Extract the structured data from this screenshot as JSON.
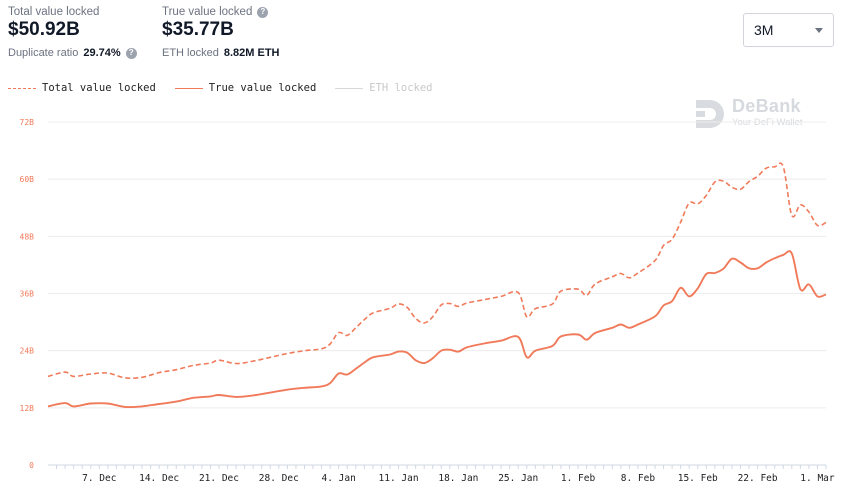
{
  "stats": {
    "total_label": "Total value locked",
    "total_value": "$50.92B",
    "duplicate_label": "Duplicate ratio",
    "duplicate_value": "29.74%",
    "true_label": "True value locked",
    "true_value": "$35.77B",
    "eth_label": "ETH locked",
    "eth_value": "8.82M ETH"
  },
  "range_select": {
    "value": "3M"
  },
  "watermark": {
    "name": "DeBank",
    "tagline": "Your DeFi Wallet"
  },
  "colors": {
    "accent": "#f07a5a",
    "grid": "#ececec",
    "muted": "#d0d0d0"
  },
  "chart_data": {
    "type": "line",
    "title": "",
    "xlabel": "",
    "ylabel": "",
    "ylim": [
      0,
      72
    ],
    "y_unit": "B",
    "y_ticks": [
      "0",
      "12B",
      "24B",
      "36B",
      "48B",
      "60B",
      "72B"
    ],
    "x_range": [
      "2020-12-01",
      "2021-03-02"
    ],
    "x_ticks": [
      {
        "date": "2020-12-07",
        "label": "7. Dec"
      },
      {
        "date": "2020-12-14",
        "label": "14. Dec"
      },
      {
        "date": "2020-12-21",
        "label": "21. Dec"
      },
      {
        "date": "2020-12-28",
        "label": "28. Dec"
      },
      {
        "date": "2021-01-04",
        "label": "4. Jan"
      },
      {
        "date": "2021-01-11",
        "label": "11. Jan"
      },
      {
        "date": "2021-01-18",
        "label": "18. Jan"
      },
      {
        "date": "2021-01-25",
        "label": "25. Jan"
      },
      {
        "date": "2021-02-01",
        "label": "1. Feb"
      },
      {
        "date": "2021-02-08",
        "label": "8. Feb"
      },
      {
        "date": "2021-02-15",
        "label": "15. Feb"
      },
      {
        "date": "2021-02-22",
        "label": "22. Feb"
      },
      {
        "date": "2021-03-01",
        "label": "1. Mar"
      }
    ],
    "grid": true,
    "legend_position": "top-left",
    "series": [
      {
        "name": "Total value locked",
        "style": "dashed",
        "color": "#f07a5a",
        "points": [
          [
            "2020-12-01",
            18.6
          ],
          [
            "2020-12-03",
            19.5
          ],
          [
            "2020-12-04",
            18.6
          ],
          [
            "2020-12-06",
            19.1
          ],
          [
            "2020-12-08",
            19.3
          ],
          [
            "2020-12-10",
            18.3
          ],
          [
            "2020-12-12",
            18.4
          ],
          [
            "2020-12-14",
            19.4
          ],
          [
            "2020-12-16",
            20.0
          ],
          [
            "2020-12-18",
            20.9
          ],
          [
            "2020-12-20",
            21.4
          ],
          [
            "2020-12-21",
            22.0
          ],
          [
            "2020-12-23",
            21.3
          ],
          [
            "2020-12-25",
            21.8
          ],
          [
            "2020-12-27",
            22.6
          ],
          [
            "2020-12-29",
            23.4
          ],
          [
            "2020-12-31",
            24.0
          ],
          [
            "2021-01-02",
            24.4
          ],
          [
            "2021-01-03",
            25.4
          ],
          [
            "2021-01-04",
            27.8
          ],
          [
            "2021-01-05",
            27.2
          ],
          [
            "2021-01-06",
            28.8
          ],
          [
            "2021-01-07",
            30.5
          ],
          [
            "2021-01-08",
            31.9
          ],
          [
            "2021-01-10",
            32.9
          ],
          [
            "2021-01-11",
            33.8
          ],
          [
            "2021-01-12",
            33.1
          ],
          [
            "2021-01-13",
            30.8
          ],
          [
            "2021-01-14",
            29.8
          ],
          [
            "2021-01-15",
            31.1
          ],
          [
            "2021-01-16",
            33.6
          ],
          [
            "2021-01-17",
            33.9
          ],
          [
            "2021-01-18",
            33.3
          ],
          [
            "2021-01-19",
            34.0
          ],
          [
            "2021-01-21",
            34.7
          ],
          [
            "2021-01-23",
            35.4
          ],
          [
            "2021-01-25",
            36.2
          ],
          [
            "2021-01-26",
            31.1
          ],
          [
            "2021-01-27",
            32.8
          ],
          [
            "2021-01-29",
            33.8
          ],
          [
            "2021-01-30",
            36.5
          ],
          [
            "2021-02-01",
            36.9
          ],
          [
            "2021-02-02",
            35.6
          ],
          [
            "2021-02-03",
            38.0
          ],
          [
            "2021-02-05",
            39.5
          ],
          [
            "2021-02-06",
            40.2
          ],
          [
            "2021-02-07",
            39.3
          ],
          [
            "2021-02-08",
            40.3
          ],
          [
            "2021-02-10",
            42.9
          ],
          [
            "2021-02-11",
            46.1
          ],
          [
            "2021-02-12",
            47.4
          ],
          [
            "2021-02-13",
            51.0
          ],
          [
            "2021-02-14",
            55.0
          ],
          [
            "2021-02-15",
            54.8
          ],
          [
            "2021-02-16",
            56.6
          ],
          [
            "2021-02-17",
            59.4
          ],
          [
            "2021-02-18",
            59.6
          ],
          [
            "2021-02-19",
            58.3
          ],
          [
            "2021-02-20",
            57.9
          ],
          [
            "2021-02-21",
            59.5
          ],
          [
            "2021-02-22",
            60.6
          ],
          [
            "2021-02-23",
            62.3
          ],
          [
            "2021-02-24",
            62.6
          ],
          [
            "2021-02-25",
            62.6
          ],
          [
            "2021-02-26",
            52.4
          ],
          [
            "2021-02-27",
            54.6
          ],
          [
            "2021-02-28",
            53.1
          ],
          [
            "2021-03-01",
            50.3
          ],
          [
            "2021-03-02",
            50.9
          ]
        ]
      },
      {
        "name": "True value locked",
        "style": "solid",
        "color": "#f07a5a",
        "points": [
          [
            "2020-12-01",
            12.3
          ],
          [
            "2020-12-03",
            13.0
          ],
          [
            "2020-12-04",
            12.3
          ],
          [
            "2020-12-06",
            12.9
          ],
          [
            "2020-12-08",
            12.9
          ],
          [
            "2020-12-10",
            12.2
          ],
          [
            "2020-12-12",
            12.3
          ],
          [
            "2020-12-14",
            12.8
          ],
          [
            "2020-12-16",
            13.3
          ],
          [
            "2020-12-18",
            14.1
          ],
          [
            "2020-12-20",
            14.4
          ],
          [
            "2020-12-21",
            14.7
          ],
          [
            "2020-12-23",
            14.3
          ],
          [
            "2020-12-25",
            14.6
          ],
          [
            "2020-12-27",
            15.2
          ],
          [
            "2020-12-29",
            15.8
          ],
          [
            "2020-12-31",
            16.2
          ],
          [
            "2021-01-02",
            16.5
          ],
          [
            "2021-01-03",
            17.2
          ],
          [
            "2021-01-04",
            19.2
          ],
          [
            "2021-01-05",
            19.0
          ],
          [
            "2021-01-06",
            20.2
          ],
          [
            "2021-01-07",
            21.5
          ],
          [
            "2021-01-08",
            22.6
          ],
          [
            "2021-01-10",
            23.2
          ],
          [
            "2021-01-11",
            23.8
          ],
          [
            "2021-01-12",
            23.6
          ],
          [
            "2021-01-13",
            22.0
          ],
          [
            "2021-01-14",
            21.4
          ],
          [
            "2021-01-15",
            22.4
          ],
          [
            "2021-01-16",
            24.0
          ],
          [
            "2021-01-17",
            24.2
          ],
          [
            "2021-01-18",
            23.8
          ],
          [
            "2021-01-19",
            24.7
          ],
          [
            "2021-01-21",
            25.5
          ],
          [
            "2021-01-23",
            26.1
          ],
          [
            "2021-01-25",
            26.9
          ],
          [
            "2021-01-26",
            22.6
          ],
          [
            "2021-01-27",
            24.0
          ],
          [
            "2021-01-29",
            25.0
          ],
          [
            "2021-01-30",
            27.0
          ],
          [
            "2021-02-01",
            27.4
          ],
          [
            "2021-02-02",
            26.3
          ],
          [
            "2021-02-03",
            27.7
          ],
          [
            "2021-02-05",
            28.8
          ],
          [
            "2021-02-06",
            29.5
          ],
          [
            "2021-02-07",
            28.8
          ],
          [
            "2021-02-08",
            29.5
          ],
          [
            "2021-02-10",
            31.2
          ],
          [
            "2021-02-11",
            33.5
          ],
          [
            "2021-02-12",
            34.4
          ],
          [
            "2021-02-13",
            37.2
          ],
          [
            "2021-02-14",
            35.4
          ],
          [
            "2021-02-15",
            37.1
          ],
          [
            "2021-02-16",
            40.1
          ],
          [
            "2021-02-17",
            40.3
          ],
          [
            "2021-02-18",
            41.2
          ],
          [
            "2021-02-19",
            43.3
          ],
          [
            "2021-02-20",
            42.5
          ],
          [
            "2021-02-21",
            41.3
          ],
          [
            "2021-02-22",
            41.3
          ],
          [
            "2021-02-23",
            42.5
          ],
          [
            "2021-02-24",
            43.4
          ],
          [
            "2021-02-25",
            44.1
          ],
          [
            "2021-02-26",
            44.4
          ],
          [
            "2021-02-27",
            36.9
          ],
          [
            "2021-02-28",
            37.9
          ],
          [
            "2021-03-01",
            35.4
          ],
          [
            "2021-03-02",
            35.8
          ]
        ]
      },
      {
        "name": "ETH locked",
        "style": "solid",
        "color": "#d0d0d0",
        "hidden": true,
        "points": []
      }
    ]
  }
}
